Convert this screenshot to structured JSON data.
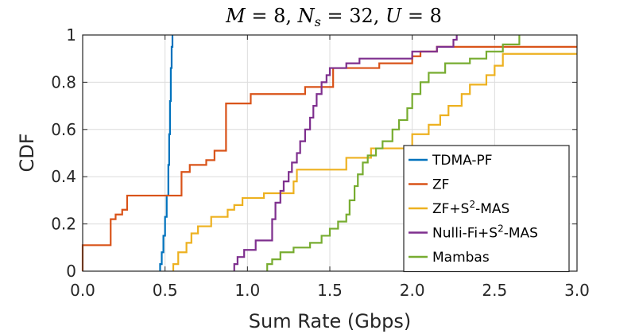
{
  "chart_data": {
    "type": "line",
    "title": "M = 8, N_s = 32, U = 8",
    "title_parts": [
      "M",
      " = 8, ",
      "N",
      "s",
      " = 32, ",
      "U",
      " = 8"
    ],
    "xlabel": "Sum Rate (Gbps)",
    "ylabel": "CDF",
    "xlim": [
      0,
      3
    ],
    "ylim": [
      0,
      1
    ],
    "x_ticks": [
      0,
      0.5,
      1,
      1.5,
      2,
      2.5,
      3
    ],
    "x_tick_labels": [
      "0.0",
      "0.5",
      "1.0",
      "1.5",
      "2.0",
      "2.5",
      "3.0"
    ],
    "y_ticks": [
      0,
      0.2,
      0.4,
      0.6,
      0.8,
      1
    ],
    "y_tick_labels": [
      "0",
      "0.2",
      "0.4",
      "0.6",
      "0.8",
      "1"
    ],
    "grid": true,
    "legend_position": "lower-right",
    "series": [
      {
        "name": "TDMA-PF",
        "color": "#0072BD",
        "points": [
          [
            0.47,
            0
          ],
          [
            0.47,
            0.03
          ],
          [
            0.48,
            0.03
          ],
          [
            0.48,
            0.08
          ],
          [
            0.49,
            0.08
          ],
          [
            0.49,
            0.15
          ],
          [
            0.5,
            0.15
          ],
          [
            0.5,
            0.23
          ],
          [
            0.51,
            0.23
          ],
          [
            0.51,
            0.32
          ],
          [
            0.52,
            0.32
          ],
          [
            0.52,
            0.45
          ],
          [
            0.525,
            0.45
          ],
          [
            0.525,
            0.58
          ],
          [
            0.53,
            0.58
          ],
          [
            0.53,
            0.72
          ],
          [
            0.535,
            0.72
          ],
          [
            0.535,
            0.86
          ],
          [
            0.54,
            0.86
          ],
          [
            0.54,
            0.95
          ],
          [
            0.545,
            0.95
          ],
          [
            0.545,
            1.0
          ]
        ]
      },
      {
        "name": "ZF",
        "color": "#D95319",
        "points": [
          [
            0,
            0
          ],
          [
            0,
            0.11
          ],
          [
            0.17,
            0.11
          ],
          [
            0.17,
            0.22
          ],
          [
            0.2,
            0.22
          ],
          [
            0.2,
            0.24
          ],
          [
            0.24,
            0.24
          ],
          [
            0.24,
            0.26
          ],
          [
            0.27,
            0.26
          ],
          [
            0.27,
            0.32
          ],
          [
            0.6,
            0.32
          ],
          [
            0.6,
            0.42
          ],
          [
            0.65,
            0.42
          ],
          [
            0.65,
            0.45
          ],
          [
            0.75,
            0.45
          ],
          [
            0.75,
            0.47
          ],
          [
            0.8,
            0.47
          ],
          [
            0.8,
            0.51
          ],
          [
            0.87,
            0.51
          ],
          [
            0.87,
            0.71
          ],
          [
            1.02,
            0.71
          ],
          [
            1.02,
            0.75
          ],
          [
            1.35,
            0.75
          ],
          [
            1.35,
            0.78
          ],
          [
            1.52,
            0.78
          ],
          [
            1.52,
            0.86
          ],
          [
            1.8,
            0.86
          ],
          [
            1.8,
            0.88
          ],
          [
            2.0,
            0.88
          ],
          [
            2.0,
            0.91
          ],
          [
            2.05,
            0.91
          ],
          [
            2.05,
            0.93
          ],
          [
            2.15,
            0.93
          ],
          [
            2.15,
            0.95
          ],
          [
            3.0,
            0.95
          ]
        ]
      },
      {
        "name": "ZF+S²-MAS",
        "name_parts": [
          "ZF+S",
          "2",
          "-MAS"
        ],
        "color": "#EDB120",
        "points": [
          [
            0.55,
            0
          ],
          [
            0.55,
            0.03
          ],
          [
            0.58,
            0.03
          ],
          [
            0.58,
            0.08
          ],
          [
            0.63,
            0.08
          ],
          [
            0.63,
            0.12
          ],
          [
            0.66,
            0.12
          ],
          [
            0.66,
            0.16
          ],
          [
            0.7,
            0.16
          ],
          [
            0.7,
            0.19
          ],
          [
            0.78,
            0.19
          ],
          [
            0.78,
            0.23
          ],
          [
            0.88,
            0.23
          ],
          [
            0.88,
            0.26
          ],
          [
            0.92,
            0.26
          ],
          [
            0.92,
            0.28
          ],
          [
            0.97,
            0.28
          ],
          [
            0.97,
            0.31
          ],
          [
            1.1,
            0.31
          ],
          [
            1.1,
            0.33
          ],
          [
            1.28,
            0.33
          ],
          [
            1.28,
            0.38
          ],
          [
            1.3,
            0.38
          ],
          [
            1.3,
            0.43
          ],
          [
            1.6,
            0.43
          ],
          [
            1.6,
            0.48
          ],
          [
            1.75,
            0.48
          ],
          [
            1.75,
            0.52
          ],
          [
            2.0,
            0.52
          ],
          [
            2.0,
            0.58
          ],
          [
            2.1,
            0.58
          ],
          [
            2.1,
            0.62
          ],
          [
            2.17,
            0.62
          ],
          [
            2.17,
            0.66
          ],
          [
            2.22,
            0.66
          ],
          [
            2.22,
            0.7
          ],
          [
            2.3,
            0.7
          ],
          [
            2.3,
            0.75
          ],
          [
            2.35,
            0.75
          ],
          [
            2.35,
            0.79
          ],
          [
            2.45,
            0.79
          ],
          [
            2.45,
            0.83
          ],
          [
            2.5,
            0.83
          ],
          [
            2.5,
            0.87
          ],
          [
            2.55,
            0.87
          ],
          [
            2.55,
            0.92
          ],
          [
            3.0,
            0.92
          ]
        ]
      },
      {
        "name": "Nulli-Fi+S²-MAS",
        "name_parts": [
          "Nulli-Fi+S",
          "2",
          "-MAS"
        ],
        "color": "#7E2F8E",
        "points": [
          [
            0.92,
            0
          ],
          [
            0.92,
            0.03
          ],
          [
            0.94,
            0.03
          ],
          [
            0.94,
            0.06
          ],
          [
            0.98,
            0.06
          ],
          [
            0.98,
            0.09
          ],
          [
            1.05,
            0.09
          ],
          [
            1.05,
            0.13
          ],
          [
            1.15,
            0.13
          ],
          [
            1.15,
            0.22
          ],
          [
            1.17,
            0.22
          ],
          [
            1.17,
            0.29
          ],
          [
            1.2,
            0.29
          ],
          [
            1.2,
            0.34
          ],
          [
            1.22,
            0.34
          ],
          [
            1.22,
            0.38
          ],
          [
            1.25,
            0.38
          ],
          [
            1.25,
            0.42
          ],
          [
            1.27,
            0.42
          ],
          [
            1.27,
            0.46
          ],
          [
            1.3,
            0.46
          ],
          [
            1.3,
            0.5
          ],
          [
            1.32,
            0.5
          ],
          [
            1.32,
            0.55
          ],
          [
            1.35,
            0.55
          ],
          [
            1.35,
            0.6
          ],
          [
            1.38,
            0.6
          ],
          [
            1.38,
            0.65
          ],
          [
            1.4,
            0.65
          ],
          [
            1.4,
            0.7
          ],
          [
            1.42,
            0.7
          ],
          [
            1.42,
            0.75
          ],
          [
            1.45,
            0.75
          ],
          [
            1.45,
            0.8
          ],
          [
            1.48,
            0.8
          ],
          [
            1.48,
            0.83
          ],
          [
            1.5,
            0.83
          ],
          [
            1.5,
            0.86
          ],
          [
            1.6,
            0.86
          ],
          [
            1.6,
            0.88
          ],
          [
            1.68,
            0.88
          ],
          [
            1.68,
            0.9
          ],
          [
            2.0,
            0.9
          ],
          [
            2.0,
            0.93
          ],
          [
            2.15,
            0.93
          ],
          [
            2.15,
            0.95
          ],
          [
            2.25,
            0.95
          ],
          [
            2.25,
            0.98
          ],
          [
            2.27,
            0.98
          ],
          [
            2.27,
            1.0
          ]
        ]
      },
      {
        "name": "Mambas",
        "color": "#77AC30",
        "points": [
          [
            1.12,
            0
          ],
          [
            1.12,
            0.03
          ],
          [
            1.15,
            0.03
          ],
          [
            1.15,
            0.05
          ],
          [
            1.2,
            0.05
          ],
          [
            1.2,
            0.08
          ],
          [
            1.28,
            0.08
          ],
          [
            1.28,
            0.1
          ],
          [
            1.38,
            0.1
          ],
          [
            1.38,
            0.12
          ],
          [
            1.45,
            0.12
          ],
          [
            1.45,
            0.15
          ],
          [
            1.5,
            0.15
          ],
          [
            1.5,
            0.18
          ],
          [
            1.55,
            0.18
          ],
          [
            1.55,
            0.21
          ],
          [
            1.6,
            0.21
          ],
          [
            1.6,
            0.24
          ],
          [
            1.62,
            0.24
          ],
          [
            1.62,
            0.3
          ],
          [
            1.65,
            0.3
          ],
          [
            1.65,
            0.36
          ],
          [
            1.67,
            0.36
          ],
          [
            1.67,
            0.41
          ],
          [
            1.7,
            0.41
          ],
          [
            1.7,
            0.46
          ],
          [
            1.73,
            0.46
          ],
          [
            1.73,
            0.49
          ],
          [
            1.78,
            0.49
          ],
          [
            1.78,
            0.52
          ],
          [
            1.82,
            0.52
          ],
          [
            1.82,
            0.55
          ],
          [
            1.88,
            0.55
          ],
          [
            1.88,
            0.6
          ],
          [
            1.92,
            0.6
          ],
          [
            1.92,
            0.64
          ],
          [
            1.97,
            0.64
          ],
          [
            1.97,
            0.69
          ],
          [
            2.0,
            0.69
          ],
          [
            2.0,
            0.75
          ],
          [
            2.05,
            0.75
          ],
          [
            2.05,
            0.8
          ],
          [
            2.1,
            0.8
          ],
          [
            2.1,
            0.84
          ],
          [
            2.2,
            0.84
          ],
          [
            2.2,
            0.88
          ],
          [
            2.35,
            0.88
          ],
          [
            2.35,
            0.9
          ],
          [
            2.45,
            0.9
          ],
          [
            2.45,
            0.93
          ],
          [
            2.55,
            0.93
          ],
          [
            2.55,
            0.96
          ],
          [
            2.65,
            0.96
          ],
          [
            2.65,
            1.0
          ]
        ]
      }
    ]
  }
}
